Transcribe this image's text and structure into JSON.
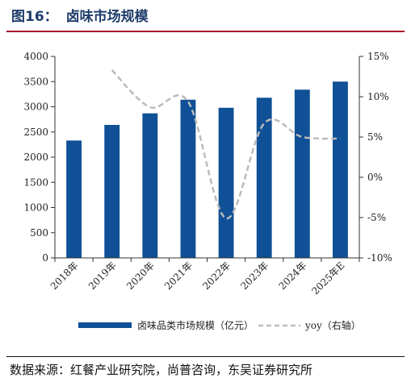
{
  "figure": {
    "label": "图16：",
    "title": "卤味市场规模",
    "source": "数据来源：红餐产业研究院，尚普咨询，东吴证券研究所"
  },
  "colors": {
    "bar": "#0f5096",
    "line": "#bbbbbb",
    "title": "#1f3d6b",
    "title_rule": "#a8102a"
  },
  "chart_data": {
    "type": "bar",
    "categories": [
      "2018年",
      "2019年",
      "2020年",
      "2021年",
      "2022年",
      "2023年",
      "2024年",
      "2025年E"
    ],
    "series": [
      {
        "name": "卤味品类市场规模（亿元）",
        "type": "bar",
        "axis": "left",
        "values": [
          2330,
          2640,
          2870,
          3140,
          2980,
          3180,
          3340,
          3500
        ]
      },
      {
        "name": "yoy（右轴）",
        "type": "line",
        "style": "dashed",
        "axis": "right",
        "values": [
          null,
          13.3,
          8.7,
          9.4,
          -5.1,
          6.7,
          5.0,
          4.8
        ]
      }
    ],
    "y_left": {
      "ylim": [
        0,
        4000
      ],
      "ticks": [
        "0",
        "500",
        "1000",
        "1500",
        "2000",
        "2500",
        "3000",
        "3500",
        "4000"
      ]
    },
    "y_right": {
      "ylim": [
        -10,
        15
      ],
      "ticks": [
        "-10%",
        "-5%",
        "0%",
        "5%",
        "10%",
        "15%"
      ]
    },
    "grid": false,
    "legend_position": "bottom"
  }
}
